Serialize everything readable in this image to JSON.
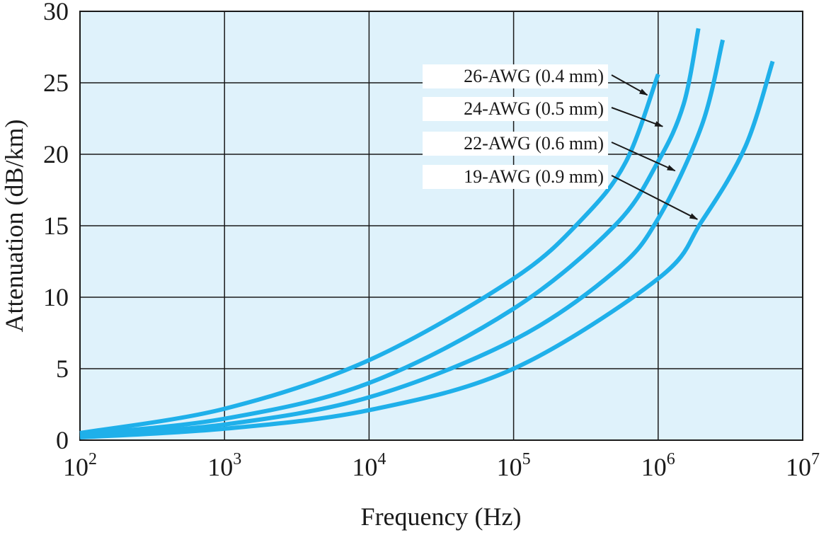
{
  "chart_data": {
    "type": "line",
    "xlabel": "Frequency (Hz)",
    "ylabel": "Attenuation (dB/km)",
    "x_scale": "log",
    "xlim": [
      100,
      10000000
    ],
    "ylim": [
      0,
      30
    ],
    "x_ticks": [
      {
        "value": 100,
        "base": "10",
        "exp": "2"
      },
      {
        "value": 1000,
        "base": "10",
        "exp": "3"
      },
      {
        "value": 10000,
        "base": "10",
        "exp": "4"
      },
      {
        "value": 100000,
        "base": "10",
        "exp": "5"
      },
      {
        "value": 1000000,
        "base": "10",
        "exp": "6"
      },
      {
        "value": 10000000,
        "base": "10",
        "exp": "7"
      }
    ],
    "y_ticks": [
      "0",
      "5",
      "10",
      "15",
      "20",
      "25",
      "30"
    ],
    "grid": true,
    "background_color": "#dff2fb",
    "line_color": "#1fb0ea",
    "series": [
      {
        "name": "26-AWG (0.4 mm)",
        "points": [
          [
            100,
            0.5
          ],
          [
            1000,
            2.2
          ],
          [
            10000,
            5.6
          ],
          [
            100000,
            11.3
          ],
          [
            300000,
            15.5
          ],
          [
            600000,
            19.5
          ],
          [
            1000000,
            25.6
          ]
        ]
      },
      {
        "name": "24-AWG (0.5 mm)",
        "points": [
          [
            100,
            0.4
          ],
          [
            1000,
            1.5
          ],
          [
            10000,
            4.0
          ],
          [
            100000,
            9.2
          ],
          [
            500000,
            15.0
          ],
          [
            1000000,
            19.5
          ],
          [
            1500000,
            23.5
          ],
          [
            1900000,
            28.8
          ]
        ]
      },
      {
        "name": "22-AWG (0.6 mm)",
        "points": [
          [
            100,
            0.3
          ],
          [
            1000,
            1.1
          ],
          [
            10000,
            3.0
          ],
          [
            100000,
            7.0
          ],
          [
            500000,
            11.8
          ],
          [
            1000000,
            15.5
          ],
          [
            2000000,
            22.0
          ],
          [
            2800000,
            28.0
          ]
        ]
      },
      {
        "name": "19-AWG (0.9 mm)",
        "points": [
          [
            100,
            0.2
          ],
          [
            1000,
            0.8
          ],
          [
            10000,
            2.1
          ],
          [
            100000,
            5.0
          ],
          [
            1000000,
            11.3
          ],
          [
            2000000,
            15.3
          ],
          [
            4000000,
            20.5
          ],
          [
            6200000,
            26.5
          ]
        ]
      }
    ],
    "annotations": [
      {
        "text": "26-AWG (0.4 mm)",
        "target": [
          900000,
          24.0
        ]
      },
      {
        "text": "24-AWG (0.5 mm)",
        "target": [
          1150000,
          21.8
        ]
      },
      {
        "text": "22-AWG (0.6 mm)",
        "target": [
          1400000,
          18.7
        ]
      },
      {
        "text": "19-AWG (0.9 mm)",
        "target": [
          2000000,
          15.3
        ]
      }
    ]
  }
}
